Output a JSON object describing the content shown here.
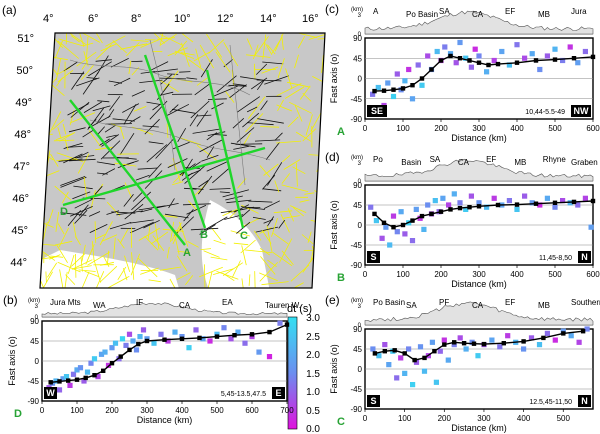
{
  "figure": {
    "colorbar": {
      "title": "dt (s)",
      "ticks": [
        "3.0",
        "2.5",
        "2.0",
        "1.5",
        "1.0",
        "0.5",
        "0.0"
      ],
      "colors": {
        "top": "#33e0f2",
        "mid": "#6b8ef0",
        "bottom": "#e012dd"
      }
    },
    "common": {
      "xlabel": "Distance (km)",
      "ylabel": "Fast axis (o)",
      "elev_unit": "(km)",
      "elev_ticks": [
        "3",
        "0"
      ],
      "y_ticks": [
        "90",
        "45",
        "0",
        "-45",
        "-90"
      ]
    },
    "colors": {
      "profile_line": "#1fd62a",
      "profile_label": "#28a335",
      "sea": "#ffffff",
      "land": "#c8c8c8",
      "yellow_bars": "#f3f000",
      "black_bars": "#111111"
    }
  },
  "panel_a": {
    "label": "(a)",
    "lon_ticks": [
      "4°",
      "6°",
      "8°",
      "10°",
      "12°",
      "14°",
      "16°"
    ],
    "lat_ticks": [
      "51°",
      "50°",
      "49°",
      "48°",
      "47°",
      "46°",
      "45°",
      "44°"
    ],
    "profile_labels": {
      "A": "A",
      "B": "B",
      "C": "C",
      "D": "D"
    }
  },
  "chart_data": [
    {
      "id": "b",
      "type": "scatter",
      "label": "(b)",
      "xlabel": "Distance (km)",
      "ylabel": "Fast axis (o)",
      "xlim": [
        0,
        700
      ],
      "ylim": [
        -90,
        90
      ],
      "x_ticks": [
        0,
        100,
        200,
        300,
        400,
        500,
        600,
        700
      ],
      "y_ticks": [
        -90,
        -45,
        0,
        45,
        90
      ],
      "corner_left": "W",
      "corner_right": "E",
      "profile_letter": "D",
      "annotation": "5,45-13.5,47.5",
      "topo_labels": [
        "Jura Mts",
        "WA",
        "IF",
        "CA",
        "EA",
        "Tauren W."
      ],
      "mean_x": [
        25,
        50,
        75,
        100,
        125,
        150,
        175,
        200,
        225,
        250,
        275,
        300,
        350,
        400,
        450,
        500,
        550,
        600,
        650,
        700
      ],
      "mean_y": [
        -48,
        -46,
        -44,
        -42,
        -38,
        -32,
        -22,
        -5,
        10,
        25,
        38,
        45,
        48,
        50,
        52,
        55,
        58,
        60,
        65,
        82
      ],
      "points": [
        [
          20,
          -60,
          0.8
        ],
        [
          30,
          -50,
          1.5
        ],
        [
          40,
          -45,
          2.2
        ],
        [
          50,
          -65,
          1.0
        ],
        [
          60,
          -40,
          1.8
        ],
        [
          70,
          -35,
          2.5
        ],
        [
          80,
          -55,
          0.5
        ],
        [
          90,
          -30,
          1.2
        ],
        [
          100,
          -20,
          2.0
        ],
        [
          110,
          -15,
          1.6
        ],
        [
          120,
          -45,
          0.9
        ],
        [
          130,
          -25,
          2.3
        ],
        [
          140,
          -5,
          1.4
        ],
        [
          150,
          5,
          2.6
        ],
        [
          160,
          -35,
          0.6
        ],
        [
          170,
          15,
          1.9
        ],
        [
          180,
          20,
          2.1
        ],
        [
          190,
          -10,
          0.4
        ],
        [
          200,
          30,
          1.7
        ],
        [
          210,
          40,
          2.4
        ],
        [
          220,
          5,
          1.1
        ],
        [
          230,
          50,
          2.8
        ],
        [
          240,
          35,
          1.3
        ],
        [
          250,
          60,
          0.7
        ],
        [
          260,
          45,
          2.0
        ],
        [
          270,
          25,
          1.5
        ],
        [
          280,
          55,
          2.2
        ],
        [
          290,
          70,
          0.9
        ],
        [
          300,
          50,
          1.8
        ],
        [
          320,
          40,
          2.5
        ],
        [
          340,
          60,
          1.2
        ],
        [
          360,
          45,
          0.5
        ],
        [
          380,
          65,
          2.1
        ],
        [
          400,
          55,
          1.6
        ],
        [
          420,
          30,
          2.7
        ],
        [
          440,
          70,
          1.0
        ],
        [
          460,
          50,
          1.9
        ],
        [
          480,
          45,
          0.3
        ],
        [
          500,
          60,
          2.3
        ],
        [
          520,
          75,
          1.4
        ],
        [
          540,
          50,
          0.8
        ],
        [
          560,
          65,
          2.0
        ],
        [
          580,
          40,
          1.1
        ],
        [
          600,
          55,
          0.6
        ],
        [
          620,
          20,
          1.7
        ],
        [
          650,
          10,
          0.2
        ],
        [
          680,
          85,
          1.3
        ]
      ]
    },
    {
      "id": "c",
      "type": "scatter",
      "label": "(c)",
      "xlabel": "Distance (km)",
      "ylabel": "Fast axis (o)",
      "xlim": [
        0,
        600
      ],
      "ylim": [
        -90,
        90
      ],
      "x_ticks": [
        0,
        100,
        200,
        300,
        400,
        500,
        600
      ],
      "y_ticks": [
        -90,
        -45,
        0,
        45,
        90
      ],
      "corner_left": "SE",
      "corner_right": "NW",
      "profile_letter": "A",
      "annotation": "10,44-5.5-49",
      "topo_labels": [
        "A",
        "Po Basin",
        "SA",
        "CA",
        "EF",
        "MB",
        "Jura"
      ],
      "mean_x": [
        25,
        50,
        75,
        100,
        125,
        150,
        175,
        200,
        225,
        250,
        275,
        300,
        325,
        350,
        400,
        450,
        500,
        550,
        600
      ],
      "mean_y": [
        -28,
        -27,
        -25,
        -22,
        -15,
        0,
        20,
        40,
        50,
        45,
        40,
        35,
        30,
        32,
        35,
        40,
        42,
        45,
        48
      ],
      "points": [
        [
          20,
          -35,
          1.2
        ],
        [
          35,
          -20,
          2.4
        ],
        [
          50,
          -60,
          0.6
        ],
        [
          60,
          -10,
          1.8
        ],
        [
          75,
          -40,
          2.7
        ],
        [
          85,
          10,
          0.9
        ],
        [
          95,
          -25,
          1.5
        ],
        [
          105,
          -5,
          2.2
        ],
        [
          115,
          20,
          0.4
        ],
        [
          125,
          -45,
          1.9
        ],
        [
          140,
          30,
          1.1
        ],
        [
          150,
          -15,
          2.6
        ],
        [
          165,
          50,
          0.7
        ],
        [
          175,
          20,
          1.6
        ],
        [
          190,
          60,
          2.3
        ],
        [
          200,
          40,
          0.5
        ],
        [
          210,
          70,
          1.3
        ],
        [
          225,
          55,
          2.0
        ],
        [
          240,
          35,
          0.8
        ],
        [
          250,
          80,
          1.7
        ],
        [
          265,
          45,
          2.5
        ],
        [
          280,
          25,
          1.0
        ],
        [
          290,
          65,
          0.3
        ],
        [
          300,
          50,
          1.4
        ],
        [
          320,
          15,
          2.1
        ],
        [
          340,
          40,
          0.6
        ],
        [
          360,
          60,
          1.9
        ],
        [
          380,
          30,
          2.4
        ],
        [
          400,
          75,
          1.2
        ],
        [
          420,
          45,
          0.7
        ],
        [
          440,
          55,
          2.0
        ],
        [
          460,
          20,
          1.5
        ],
        [
          480,
          50,
          0.9
        ],
        [
          500,
          65,
          2.2
        ],
        [
          520,
          40,
          1.3
        ],
        [
          540,
          70,
          0.4
        ],
        [
          560,
          35,
          1.8
        ],
        [
          580,
          60,
          1.1
        ]
      ]
    },
    {
      "id": "d",
      "type": "scatter",
      "label": "(d)",
      "xlabel": "Distance (km)",
      "ylabel": "Fast axis (o)",
      "xlim": [
        0,
        600
      ],
      "ylim": [
        -90,
        90
      ],
      "x_ticks": [
        0,
        100,
        200,
        300,
        400,
        500,
        600
      ],
      "y_ticks": [
        -90,
        -45,
        0,
        45,
        90
      ],
      "corner_left": "S",
      "corner_right": "N",
      "profile_letter": "B",
      "annotation": "11,45-8,50",
      "topo_labels": [
        "Po",
        "Basin",
        "SA",
        "CA",
        "EF",
        "MB",
        "Rhyne",
        "Graben"
      ],
      "mean_x": [
        25,
        50,
        75,
        100,
        125,
        150,
        175,
        200,
        225,
        250,
        275,
        300,
        350,
        400,
        450,
        500,
        550,
        600
      ],
      "mean_y": [
        25,
        5,
        -5,
        0,
        10,
        20,
        25,
        30,
        35,
        38,
        40,
        42,
        45,
        46,
        48,
        50,
        52,
        54
      ],
      "points": [
        [
          15,
          40,
          1.2
        ],
        [
          30,
          10,
          2.5
        ],
        [
          45,
          -30,
          0.8
        ],
        [
          55,
          -5,
          1.7
        ],
        [
          65,
          -45,
          2.3
        ],
        [
          75,
          20,
          0.5
        ],
        [
          85,
          -15,
          1.4
        ],
        [
          95,
          30,
          2.0
        ],
        [
          105,
          -20,
          0.9
        ],
        [
          115,
          5,
          2.7
        ],
        [
          125,
          -35,
          1.1
        ],
        [
          135,
          35,
          1.8
        ],
        [
          145,
          15,
          0.4
        ],
        [
          155,
          -10,
          2.2
        ],
        [
          165,
          45,
          1.5
        ],
        [
          175,
          25,
          0.7
        ],
        [
          185,
          55,
          2.4
        ],
        [
          195,
          30,
          1.0
        ],
        [
          205,
          60,
          1.9
        ],
        [
          220,
          45,
          0.6
        ],
        [
          235,
          70,
          2.1
        ],
        [
          250,
          50,
          1.3
        ],
        [
          265,
          35,
          2.6
        ],
        [
          280,
          65,
          0.8
        ],
        [
          300,
          50,
          1.6
        ],
        [
          320,
          40,
          2.3
        ],
        [
          340,
          60,
          0.5
        ],
        [
          360,
          45,
          1.9
        ],
        [
          380,
          55,
          1.2
        ],
        [
          400,
          35,
          2.5
        ],
        [
          420,
          65,
          0.9
        ],
        [
          440,
          50,
          1.7
        ],
        [
          460,
          45,
          0.3
        ],
        [
          480,
          60,
          2.0
        ],
        [
          500,
          40,
          1.4
        ],
        [
          520,
          55,
          0.7
        ],
        [
          540,
          50,
          2.2
        ],
        [
          560,
          45,
          1.1
        ],
        [
          580,
          60,
          0.6
        ],
        [
          595,
          -5,
          1.8
        ]
      ]
    },
    {
      "id": "e",
      "type": "scatter",
      "label": "(e)",
      "xlabel": "Distance (km)",
      "ylabel": "Fast axis (o)",
      "xlim": [
        0,
        575
      ],
      "ylim": [
        -90,
        90
      ],
      "x_ticks": [
        0,
        100,
        200,
        300,
        400,
        500
      ],
      "y_ticks": [
        -90,
        -45,
        0,
        45,
        90
      ],
      "corner_left": "S",
      "corner_right": "N",
      "profile_letter": "C",
      "annotation": "12.5,45-11,50",
      "topo_labels": [
        "Po Basin",
        "SA",
        "PF",
        "CA",
        "EF",
        "MB",
        "Southern Germany"
      ],
      "mean_x": [
        25,
        50,
        75,
        100,
        125,
        150,
        175,
        200,
        225,
        250,
        275,
        300,
        350,
        400,
        450,
        500,
        550
      ],
      "mean_y": [
        35,
        40,
        42,
        35,
        20,
        25,
        40,
        55,
        60,
        58,
        57,
        56,
        58,
        62,
        70,
        80,
        85
      ],
      "points": [
        [
          20,
          45,
          1.5
        ],
        [
          35,
          30,
          2.4
        ],
        [
          50,
          55,
          0.8
        ],
        [
          60,
          10,
          1.9
        ],
        [
          70,
          40,
          2.6
        ],
        [
          80,
          -20,
          1.1
        ],
        [
          90,
          25,
          0.5
        ],
        [
          100,
          -10,
          2.2
        ],
        [
          110,
          45,
          1.4
        ],
        [
          120,
          -35,
          2.7
        ],
        [
          130,
          15,
          0.9
        ],
        [
          140,
          50,
          1.6
        ],
        [
          150,
          -5,
          2.3
        ],
        [
          160,
          30,
          0.6
        ],
        [
          170,
          60,
          1.8
        ],
        [
          180,
          -30,
          2.5
        ],
        [
          190,
          40,
          1.0
        ],
        [
          200,
          65,
          0.4
        ],
        [
          210,
          20,
          2.0
        ],
        [
          225,
          55,
          1.3
        ],
        [
          240,
          70,
          0.7
        ],
        [
          255,
          45,
          2.1
        ],
        [
          270,
          60,
          1.5
        ],
        [
          285,
          30,
          2.6
        ],
        [
          300,
          55,
          0.8
        ],
        [
          320,
          65,
          1.9
        ],
        [
          340,
          50,
          1.2
        ],
        [
          360,
          75,
          0.5
        ],
        [
          380,
          60,
          2.2
        ],
        [
          400,
          45,
          1.6
        ],
        [
          420,
          70,
          0.9
        ],
        [
          440,
          55,
          2.4
        ],
        [
          460,
          80,
          1.1
        ],
        [
          480,
          65,
          0.3
        ],
        [
          500,
          85,
          1.7
        ],
        [
          520,
          75,
          2.0
        ],
        [
          540,
          60,
          0.6
        ],
        [
          560,
          90,
          1.4
        ]
      ]
    }
  ]
}
